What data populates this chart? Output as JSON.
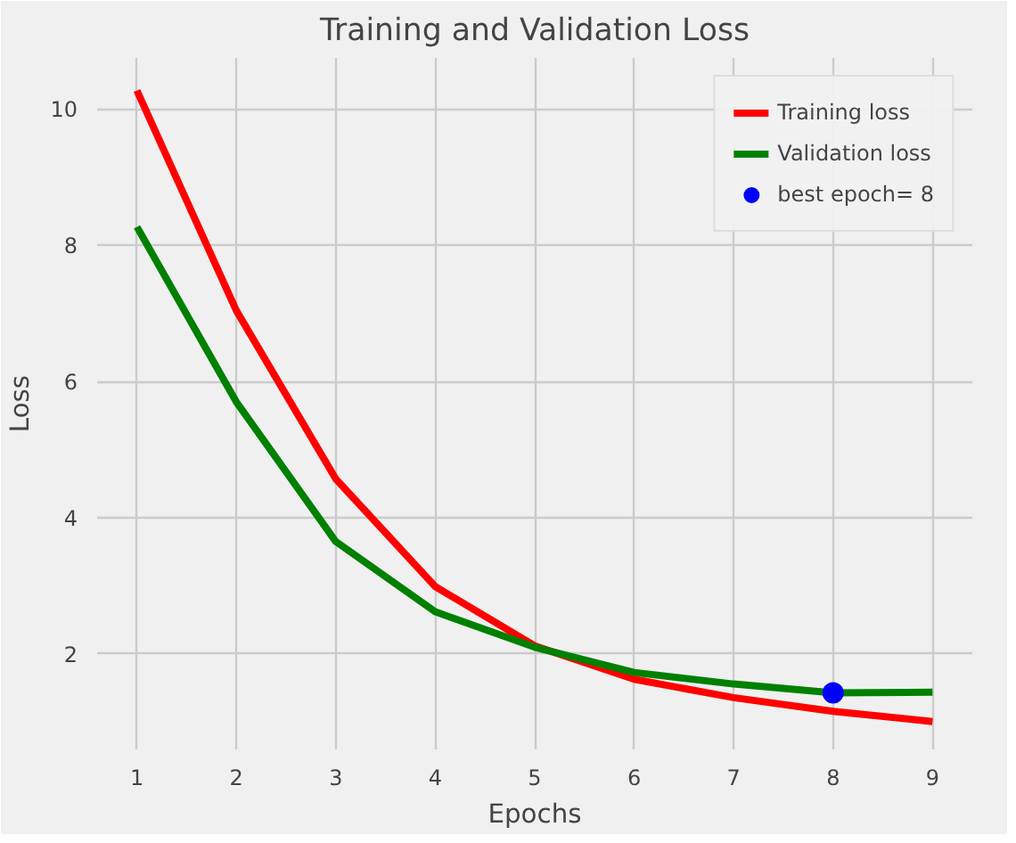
{
  "chart_data": {
    "type": "line",
    "title": "Training and Validation Loss",
    "xlabel": "Epochs",
    "ylabel": "Loss",
    "x": [
      1,
      2,
      3,
      4,
      5,
      6,
      7,
      8,
      9
    ],
    "series": [
      {
        "name": "Training loss",
        "color": "#ff0000",
        "values": [
          10.27,
          7.04,
          4.57,
          2.99,
          2.12,
          1.63,
          1.36,
          1.16,
          1.01
        ]
      },
      {
        "name": "Validation loss",
        "color": "#008000",
        "values": [
          8.27,
          5.7,
          3.65,
          2.62,
          2.1,
          1.73,
          1.56,
          1.43,
          1.44
        ]
      },
      {
        "name": "best epoch= 8",
        "type": "scatter",
        "color": "#0000ff",
        "x": [
          8
        ],
        "values": [
          1.43
        ],
        "marker": "circle"
      }
    ],
    "xlim": [
      0.6,
      9.4
    ],
    "ylim": [
      0.6,
      10.75
    ],
    "xticks": [
      1,
      2,
      3,
      4,
      5,
      6,
      7,
      8,
      9
    ],
    "yticks": [
      2,
      4,
      6,
      8,
      10
    ],
    "grid": true,
    "legend": "top right",
    "marker": "none",
    "line_style": "solid"
  }
}
